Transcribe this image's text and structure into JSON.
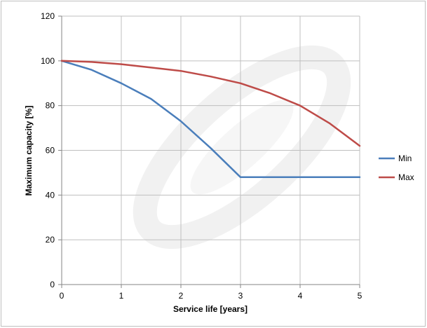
{
  "chart_data": {
    "type": "line",
    "title": "",
    "xlabel": "Service life [years]",
    "ylabel": "Maximum capacity [%]",
    "xlim": [
      0,
      5
    ],
    "ylim": [
      0,
      120
    ],
    "x_ticks": [
      "0",
      "1",
      "2",
      "3",
      "4",
      "5"
    ],
    "y_ticks": [
      "0",
      "20",
      "40",
      "60",
      "80",
      "100",
      "120"
    ],
    "grid": true,
    "legend_position": "right",
    "series": [
      {
        "name": "Min",
        "color": "#4a7ebb",
        "x": [
          0,
          0.5,
          1,
          1.5,
          2,
          2.5,
          3,
          3.5,
          4,
          4.5,
          5
        ],
        "y": [
          100,
          96,
          90,
          83,
          73,
          61,
          48,
          48,
          48,
          48,
          48
        ]
      },
      {
        "name": "Max",
        "color": "#be4b48",
        "x": [
          0,
          0.5,
          1,
          1.5,
          2,
          2.5,
          3,
          3.5,
          4,
          4.5,
          5
        ],
        "y": [
          100,
          99.5,
          98.5,
          97,
          95.5,
          93,
          90,
          85.5,
          80,
          72,
          62
        ]
      }
    ]
  }
}
